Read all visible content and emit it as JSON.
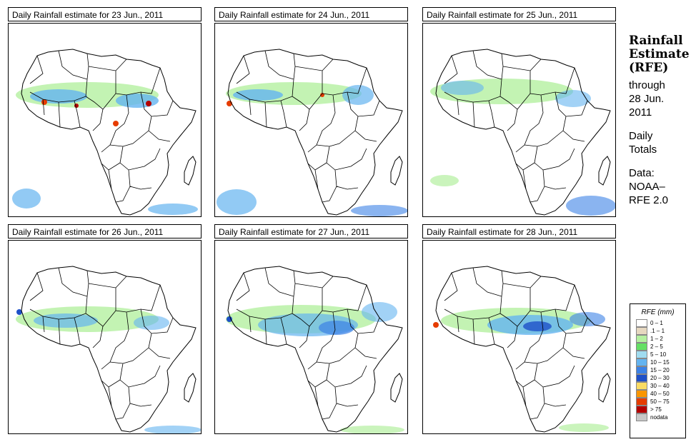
{
  "panels": [
    {
      "title": "Daily Rainfall estimate for  23 Jun., 2011"
    },
    {
      "title": "Daily Rainfall estimate for  24 Jun., 2011"
    },
    {
      "title": "Daily Rainfall estimate for  25 Jun., 2011"
    },
    {
      "title": "Daily Rainfall estimate for  26 Jun., 2011"
    },
    {
      "title": "Daily Rainfall estimate for  27 Jun., 2011"
    },
    {
      "title": "Daily Rainfall estimate for  28 Jun., 2011"
    }
  ],
  "sidebar": {
    "heading1": "Rainfall",
    "heading2": "Estimate",
    "heading3": "(RFE)",
    "through": "through",
    "date1": "28 Jun.",
    "date2": "2011",
    "daily": "Daily",
    "totals": "Totals",
    "data_label": "Data:",
    "source1": "NOAA–",
    "source2": "RFE 2.0"
  },
  "legend": {
    "title": "RFE (mm)",
    "items": [
      {
        "label": "0 – 1",
        "color": "#ffffff"
      },
      {
        "label": ".1 – 1",
        "color": "#e6d8c0"
      },
      {
        "label": "1 – 2",
        "color": "#b4f0a0"
      },
      {
        "label": "2 – 5",
        "color": "#64e064"
      },
      {
        "label": "5 – 10",
        "color": "#a0dcf0"
      },
      {
        "label": "10 – 15",
        "color": "#64b4f0"
      },
      {
        "label": "15 – 20",
        "color": "#3c82e6"
      },
      {
        "label": "20 – 30",
        "color": "#1e50c8"
      },
      {
        "label": "30 – 40",
        "color": "#fadc64"
      },
      {
        "label": "40 – 50",
        "color": "#fa9600"
      },
      {
        "label": "50 – 75",
        "color": "#e63c00"
      },
      {
        "label": "> 75",
        "color": "#b40000"
      },
      {
        "label": "nodata",
        "color": "#c8c8c8"
      }
    ]
  }
}
